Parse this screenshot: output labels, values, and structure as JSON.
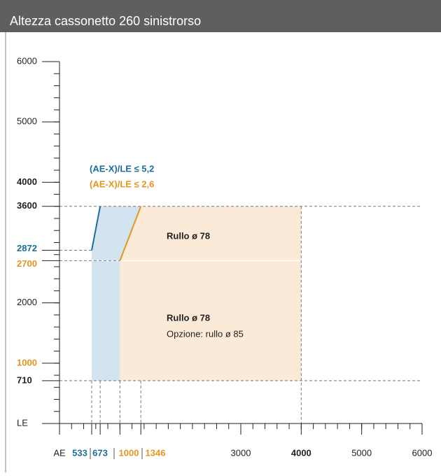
{
  "header": {
    "title": "Altezza cassonetto 260 sinistrorso"
  },
  "chart_data": {
    "type": "region",
    "xlim": [
      0,
      6000
    ],
    "ylim": [
      0,
      6000
    ],
    "xticks": [
      {
        "value": 0,
        "label": "AE"
      },
      533,
      673,
      1000,
      1346,
      3000,
      4000,
      5000,
      6000
    ],
    "yticks": [
      {
        "value": 0,
        "label": "LE"
      },
      710,
      1000,
      2000,
      2700,
      2872,
      3600,
      4000,
      5000,
      6000
    ],
    "minor_step": 200,
    "limits": {
      "x_max": 4000,
      "y_min": 710,
      "y_max": 3600
    },
    "series": [
      {
        "name": "(AE-X)/LE ≤ 5,2",
        "color": "#1b6f97",
        "fill": "#d3e4f1",
        "x": [
          533,
          673
        ],
        "y": [
          2872,
          3600
        ]
      },
      {
        "name": "(AE-X)/LE ≤ 2,6",
        "color": "#e3961f",
        "fill": "#fbead7",
        "x": [
          1000,
          1346
        ],
        "y": [
          2700,
          3600
        ]
      }
    ],
    "annotations": [
      "Rullo ø 78",
      "Rullo ø 78",
      "Opzione: rullo ø 85"
    ]
  }
}
